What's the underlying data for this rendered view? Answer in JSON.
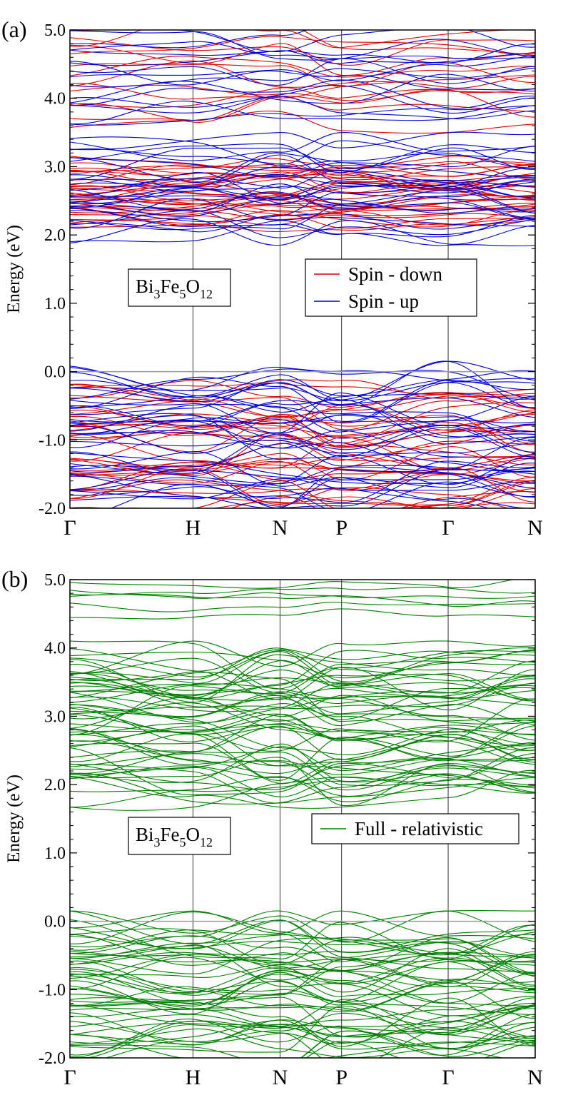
{
  "chart_data": [
    {
      "type": "line",
      "panel_label": "(a)",
      "ylabel": "Energy (eV)",
      "ylim": [
        -2.0,
        5.0
      ],
      "y_ticks": [
        "-2.0",
        "-1.0",
        "0.0",
        "1.0",
        "2.0",
        "3.0",
        "4.0",
        "5.0"
      ],
      "k_path": [
        {
          "label": "Γ",
          "x": 0.0
        },
        {
          "label": "H",
          "x": 1.0
        },
        {
          "label": "N",
          "x": 1.7071
        },
        {
          "label": "P",
          "x": 2.2071
        },
        {
          "label": "Γ",
          "x": 3.0731
        },
        {
          "label": "N",
          "x": 3.7802
        }
      ],
      "fermi_level": 0.0,
      "formula": {
        "base1": "Bi",
        "sub1": "3",
        "base2": "Fe",
        "sub2": "5",
        "base3": "O",
        "sub3": "12"
      },
      "legend": [
        {
          "label": "Spin - down",
          "color": "#e00000"
        },
        {
          "label": "Spin - up",
          "color": "#0000d8"
        }
      ],
      "series": [
        {
          "name": "Spin - down",
          "color": "#e00000",
          "band_groups": [
            {
              "range": [
                -2.0,
                -0.28
              ],
              "count": 34,
              "seed": 11
            },
            {
              "range": [
                2.18,
                3.05
              ],
              "count": 30,
              "seed": 12
            },
            {
              "range": [
                3.65,
                5.0
              ],
              "count": 14,
              "seed": 13
            }
          ]
        },
        {
          "name": "Spin - up",
          "color": "#0000d8",
          "band_groups": [
            {
              "range": [
                -2.0,
                0.0
              ],
              "count": 38,
              "seed": 21
            },
            {
              "range": [
                2.0,
                3.35
              ],
              "count": 28,
              "seed": 22
            },
            {
              "range": [
                3.7,
                5.0
              ],
              "count": 16,
              "seed": 23
            }
          ]
        }
      ]
    },
    {
      "type": "line",
      "panel_label": "(b)",
      "ylabel": "Energy (eV)",
      "ylim": [
        -2.0,
        5.0
      ],
      "y_ticks": [
        "-2.0",
        "-1.0",
        "0.0",
        "1.0",
        "2.0",
        "3.0",
        "4.0",
        "5.0"
      ],
      "k_path": [
        {
          "label": "Γ",
          "x": 0.0
        },
        {
          "label": "H",
          "x": 1.0
        },
        {
          "label": "N",
          "x": 1.7071
        },
        {
          "label": "P",
          "x": 2.2071
        },
        {
          "label": "Γ",
          "x": 3.0731
        },
        {
          "label": "N",
          "x": 3.7802
        }
      ],
      "fermi_level": 0.0,
      "formula": {
        "base1": "Bi",
        "sub1": "3",
        "base2": "Fe",
        "sub2": "5",
        "base3": "O",
        "sub3": "12"
      },
      "legend": [
        {
          "label": "Full - relativistic",
          "color": "#008000"
        }
      ],
      "series": [
        {
          "name": "Full - relativistic",
          "color": "#008000",
          "band_groups": [
            {
              "range": [
                -2.0,
                0.0
              ],
              "count": 56,
              "seed": 31
            },
            {
              "range": [
                1.82,
                3.95
              ],
              "count": 60,
              "seed": 32
            },
            {
              "range": [
                4.45,
                5.0
              ],
              "count": 6,
              "seed": 33
            }
          ]
        }
      ]
    }
  ]
}
